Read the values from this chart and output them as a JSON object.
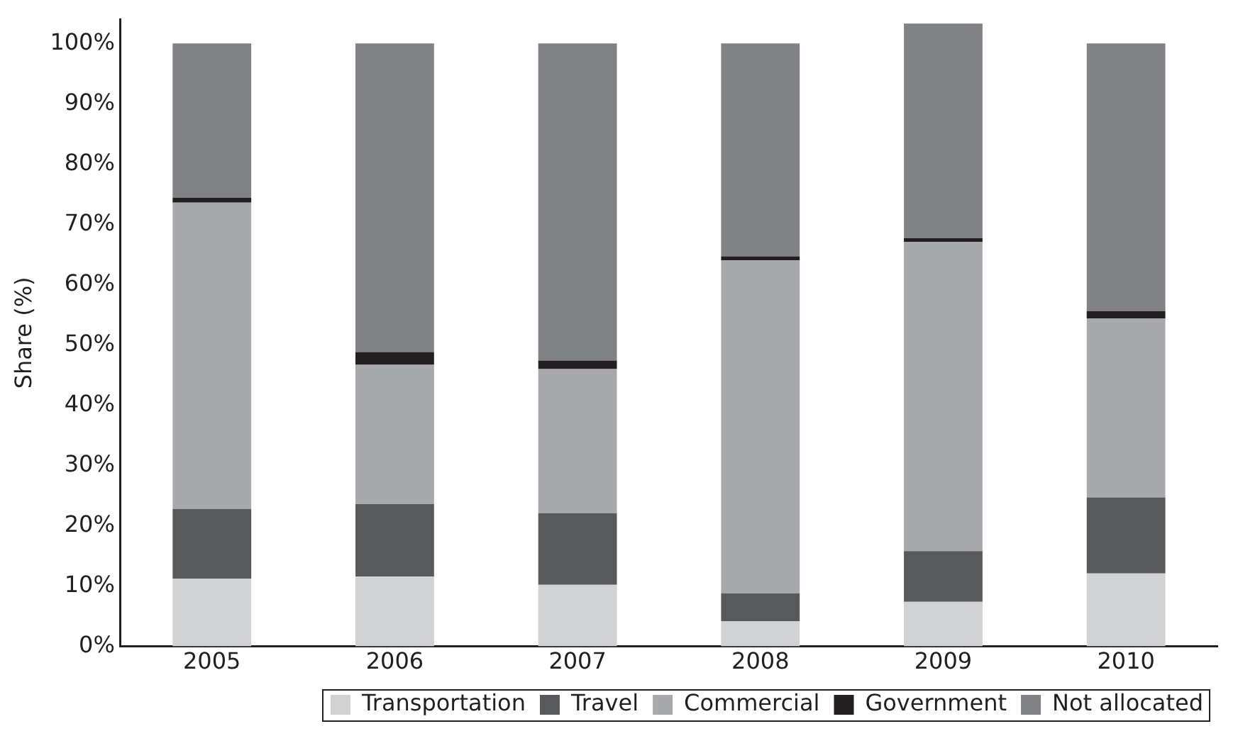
{
  "chart_data": {
    "type": "bar",
    "stacked": true,
    "ylabel": "Share (%)",
    "categories": [
      "2005",
      "2006",
      "2007",
      "2008",
      "2009",
      "2010"
    ],
    "series": [
      {
        "name": "Transportation",
        "color": "#d1d2d4",
        "values": [
          11.2,
          11.6,
          10.2,
          4.2,
          7.4,
          12.1
        ]
      },
      {
        "name": "Travel",
        "color": "#58595b",
        "values": [
          11.6,
          12.0,
          11.9,
          4.6,
          8.4,
          12.6
        ]
      },
      {
        "name": "Commercial",
        "color": "#a7a9ac",
        "values": [
          50.8,
          23.1,
          23.9,
          55.2,
          51.3,
          29.7
        ]
      },
      {
        "name": "Government",
        "color": "#231f20",
        "values": [
          0.8,
          2.1,
          1.4,
          0.7,
          0.6,
          1.2
        ]
      },
      {
        "name": "Not allocated",
        "color": "#808285",
        "values": [
          25.6,
          51.2,
          52.6,
          35.3,
          35.6,
          44.4
        ]
      }
    ],
    "ylim": [
      0,
      104
    ],
    "yticks": [
      {
        "value": 0,
        "label": "0%"
      },
      {
        "value": 10,
        "label": "10%"
      },
      {
        "value": 20,
        "label": "20%"
      },
      {
        "value": 30,
        "label": "30%"
      },
      {
        "value": 40,
        "label": "40%"
      },
      {
        "value": 50,
        "label": "50%"
      },
      {
        "value": 60,
        "label": "60%"
      },
      {
        "value": 70,
        "label": "70%"
      },
      {
        "value": 80,
        "label": "80%"
      },
      {
        "value": 90,
        "label": "90%"
      },
      {
        "value": 100,
        "label": "100%"
      }
    ],
    "grid": false,
    "legend": "bottom"
  }
}
